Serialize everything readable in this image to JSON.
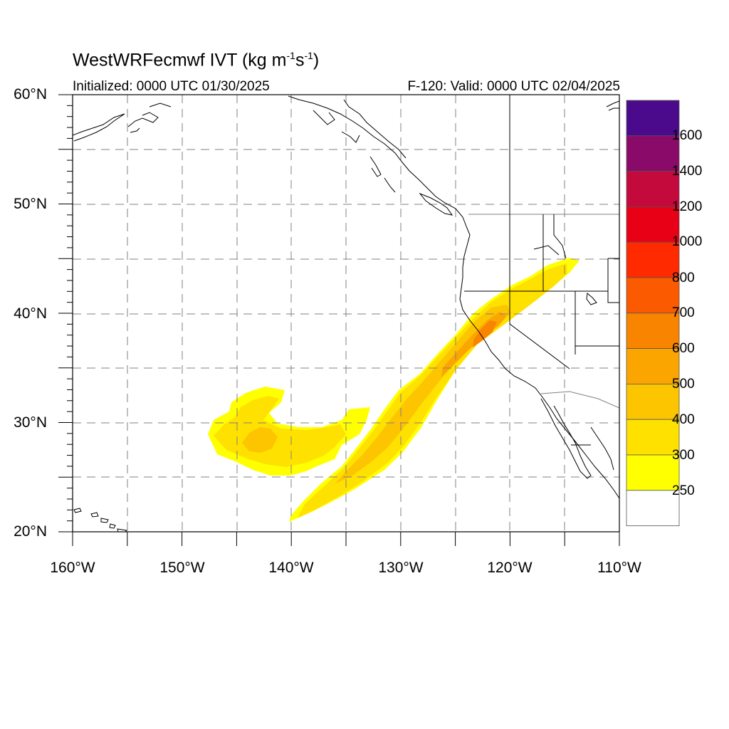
{
  "header": {
    "title_prefix": "WestWRFecmwf IVT (kg m",
    "title_sup1": "-1",
    "title_mid": "s",
    "title_sup2": "-1",
    "title_suffix": ")",
    "initialized": "Initialized: 0000 UTC 01/30/2025",
    "valid": "F-120: Valid: 0000 UTC 02/04/2025"
  },
  "axes": {
    "lat_labels": [
      "60°N",
      "50°N",
      "40°N",
      "30°N",
      "20°N"
    ],
    "lon_labels": [
      "160°W",
      "150°W",
      "140°W",
      "130°W",
      "120°W",
      "110°W"
    ]
  },
  "legend": {
    "levels": [
      "1600",
      "1400",
      "1200",
      "1000",
      "800",
      "700",
      "600",
      "500",
      "400",
      "300",
      "250"
    ],
    "colors": [
      "#4b0a8c",
      "#8a0a6a",
      "#c4093d",
      "#e80016",
      "#ff2a00",
      "#fb5a00",
      "#f88400",
      "#fba600",
      "#fdc400",
      "#ffe100",
      "#ffff00",
      "#ffffff"
    ]
  }
}
